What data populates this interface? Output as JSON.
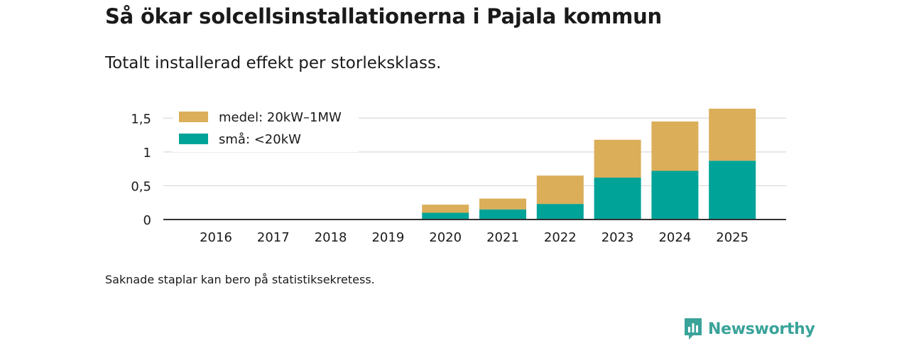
{
  "title": "Så ökar solcellsinstallationerna i Pajala kommun",
  "subtitle": "Totalt installerad effekt per storleksklass.",
  "note": "Saknade staplar kan bero på statistiksekretess.",
  "brand": {
    "name": "Newsworthy",
    "icon": "newsworthy-logo-icon"
  },
  "colors": {
    "small": "#00a398",
    "medium": "#dbae59",
    "grid": "#d9d9d9",
    "axis": "#333333",
    "text": "#1a1a1a"
  },
  "chart_data": {
    "type": "bar",
    "stacked": true,
    "categories": [
      "2016",
      "2017",
      "2018",
      "2019",
      "2020",
      "2021",
      "2022",
      "2023",
      "2024",
      "2025"
    ],
    "series": [
      {
        "name": "små: <20kW",
        "key": "small",
        "values": [
          0,
          0,
          0,
          0,
          0.1,
          0.15,
          0.23,
          0.62,
          0.72,
          0.87
        ]
      },
      {
        "name": "medel: 20kW–1MW",
        "key": "medium",
        "values": [
          0,
          0,
          0,
          0,
          0.12,
          0.16,
          0.42,
          0.56,
          0.73,
          0.77
        ]
      }
    ],
    "legend_order": [
      "medium",
      "small"
    ],
    "ylim": [
      0,
      1.65
    ],
    "yticks": [
      0,
      0.5,
      1,
      1.5
    ],
    "ytick_labels": [
      "0",
      "0,5",
      "1",
      "1,5"
    ],
    "grid": true,
    "legend_position": "top-left",
    "xlabel": "",
    "ylabel": ""
  }
}
